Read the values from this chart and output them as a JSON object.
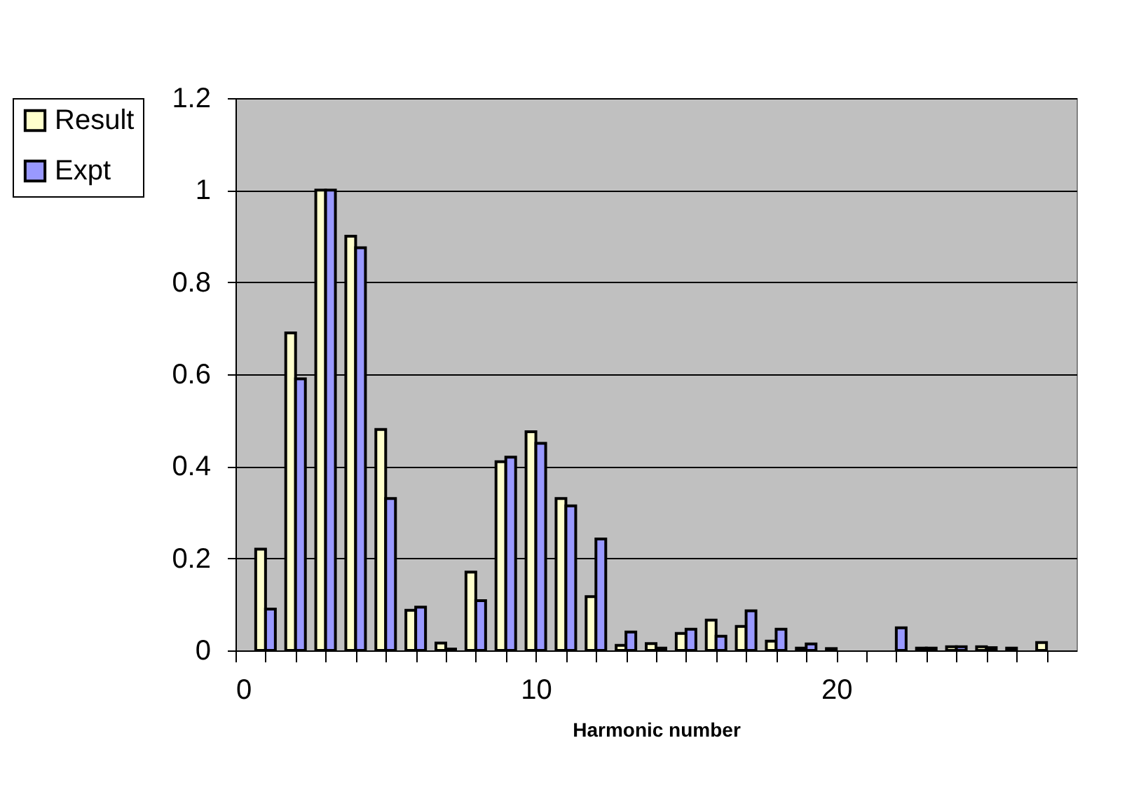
{
  "chart_data": {
    "type": "bar",
    "xlabel": "Harmonic number",
    "x": [
      1,
      2,
      3,
      4,
      5,
      6,
      7,
      8,
      9,
      10,
      11,
      12,
      13,
      14,
      15,
      16,
      17,
      18,
      19,
      20,
      21,
      22,
      23,
      24,
      25,
      26,
      27
    ],
    "series": [
      {
        "name": "Result",
        "color": "#ffffcc",
        "values": [
          0.22,
          0.69,
          1.0,
          0.9,
          0.48,
          0.087,
          0.016,
          0.17,
          0.41,
          0.475,
          0.33,
          0.117,
          0.011,
          0.015,
          0.037,
          0.066,
          0.052,
          0.02,
          0.005,
          0.004,
          null,
          null,
          0.005,
          0.008,
          0.008,
          0.005,
          0.017
        ]
      },
      {
        "name": "Expt",
        "color": "#9999ff",
        "values": [
          0.09,
          0.59,
          1.0,
          0.875,
          0.33,
          0.094,
          0.003,
          0.108,
          0.42,
          0.45,
          0.314,
          0.242,
          0.04,
          0.005,
          0.046,
          0.031,
          0.086,
          0.046,
          0.014,
          null,
          null,
          0.049,
          0.005,
          0.008,
          0.006,
          null,
          null
        ]
      }
    ],
    "xlim": [
      0,
      28
    ],
    "xticks": [
      0,
      {
        "value": 1,
        "label": null
      },
      {
        "value": 2,
        "label": null
      },
      {
        "value": 3,
        "label": null
      },
      {
        "value": 4,
        "label": null
      },
      {
        "value": 5,
        "label": null
      },
      {
        "value": 6,
        "label": null
      },
      {
        "value": 7,
        "label": null
      },
      {
        "value": 8,
        "label": null
      },
      {
        "value": 9,
        "label": null
      },
      10,
      {
        "value": 11,
        "label": null
      },
      {
        "value": 12,
        "label": null
      },
      {
        "value": 13,
        "label": null
      },
      {
        "value": 14,
        "label": null
      },
      {
        "value": 15,
        "label": null
      },
      {
        "value": 16,
        "label": null
      },
      {
        "value": 17,
        "label": null
      },
      {
        "value": 18,
        "label": null
      },
      {
        "value": 19,
        "label": null
      },
      20,
      {
        "value": 21,
        "label": null
      },
      {
        "value": 22,
        "label": null
      },
      {
        "value": 23,
        "label": null
      },
      {
        "value": 24,
        "label": null
      },
      {
        "value": 25,
        "label": null
      },
      {
        "value": 26,
        "label": null
      },
      {
        "value": 27,
        "label": null
      }
    ],
    "ylim": [
      0,
      1.2
    ],
    "yticks": [
      0,
      0.2,
      0.4,
      0.6,
      0.8,
      1,
      1.2
    ],
    "grid": "y",
    "legend": "left"
  }
}
